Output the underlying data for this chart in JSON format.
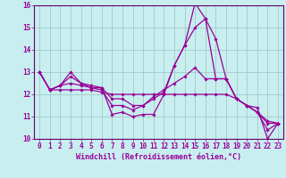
{
  "xlabel": "Windchill (Refroidissement éolien,°C)",
  "background_color": "#c8eef0",
  "grid_color": "#a0ccc8",
  "line_color": "#990099",
  "spine_color": "#660066",
  "xlim": [
    -0.5,
    23.5
  ],
  "ylim": [
    10,
    16
  ],
  "yticks": [
    10,
    11,
    12,
    13,
    14,
    15,
    16
  ],
  "xticks": [
    0,
    1,
    2,
    3,
    4,
    5,
    6,
    7,
    8,
    9,
    10,
    11,
    12,
    13,
    14,
    15,
    16,
    17,
    18,
    19,
    20,
    21,
    22,
    23
  ],
  "lines": [
    [
      13.0,
      12.2,
      12.4,
      13.0,
      12.5,
      12.4,
      12.3,
      11.1,
      11.2,
      11.0,
      11.1,
      11.1,
      12.0,
      13.3,
      14.2,
      16.1,
      15.4,
      14.5,
      12.7,
      11.8,
      11.5,
      11.4,
      10.0,
      10.7
    ],
    [
      13.0,
      12.2,
      12.4,
      12.8,
      12.5,
      12.3,
      12.2,
      11.5,
      11.5,
      11.3,
      11.5,
      11.8,
      12.1,
      13.3,
      14.2,
      15.0,
      15.4,
      12.7,
      12.7,
      11.8,
      11.5,
      11.2,
      10.4,
      10.7
    ],
    [
      13.0,
      12.2,
      12.4,
      12.5,
      12.4,
      12.3,
      12.3,
      11.8,
      11.8,
      11.5,
      11.5,
      11.9,
      12.2,
      12.5,
      12.8,
      13.2,
      12.7,
      12.7,
      12.7,
      11.8,
      11.5,
      11.2,
      10.7,
      10.7
    ],
    [
      13.0,
      12.2,
      12.2,
      12.2,
      12.2,
      12.2,
      12.1,
      12.0,
      12.0,
      12.0,
      12.0,
      12.0,
      12.0,
      12.0,
      12.0,
      12.0,
      12.0,
      12.0,
      12.0,
      11.8,
      11.5,
      11.2,
      10.8,
      10.7
    ]
  ],
  "tick_fontsize": 5.5,
  "xlabel_fontsize": 6.0
}
